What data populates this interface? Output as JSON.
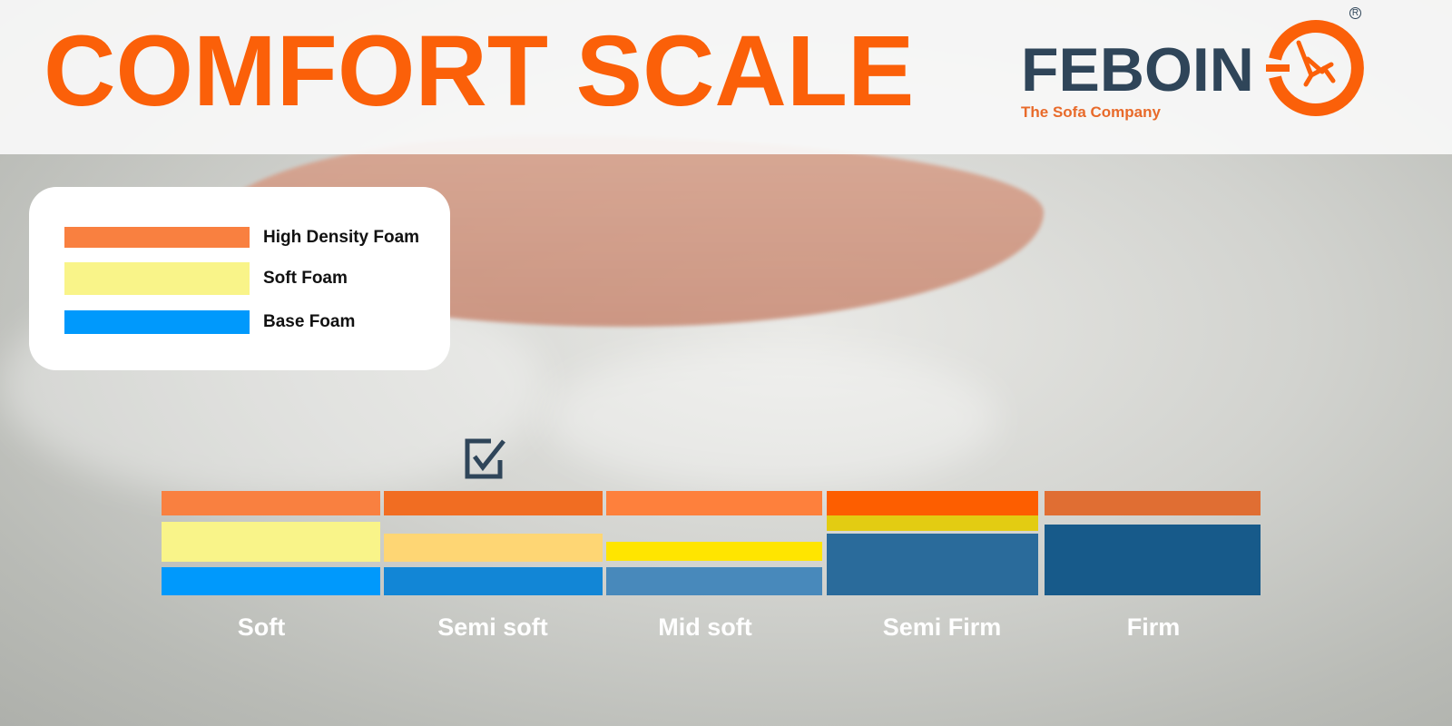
{
  "title": "COMFORT SCALE",
  "logo": {
    "wordmark": "FEBOIN",
    "tagline": "The Sofa Company",
    "registered": "R",
    "icon": "chair-in-circle-logo-icon",
    "colors": {
      "wordmark": "#2f4559",
      "accent": "#fb6009"
    }
  },
  "legend": [
    {
      "label": "High Density Foam",
      "color": "#f98040"
    },
    {
      "label": "Soft Foam",
      "color": "#f9f489"
    },
    {
      "label": "Base Foam",
      "color": "#0099fc"
    }
  ],
  "selected_icon": "checkbox-checked-icon",
  "selected_level": "Semi soft",
  "levels": [
    {
      "label": "Soft",
      "colors": {
        "high": "#f98040",
        "soft": "#f9f489",
        "base": "#0099fc"
      }
    },
    {
      "label": "Semi soft",
      "colors": {
        "high": "#f16d22",
        "soft": "#fed674",
        "base": "#1286d6"
      }
    },
    {
      "label": "Mid soft",
      "colors": {
        "high": "#fe803c",
        "soft": "#ffe500",
        "base": "#4889bb"
      }
    },
    {
      "label": "Semi Firm",
      "colors": {
        "high": "#fd5e00",
        "soft": "#e3cc12",
        "base": "#2a6b9b"
      }
    },
    {
      "label": "Firm",
      "colors": {
        "high": "#e06e33",
        "base": "#175a8a"
      }
    }
  ]
}
